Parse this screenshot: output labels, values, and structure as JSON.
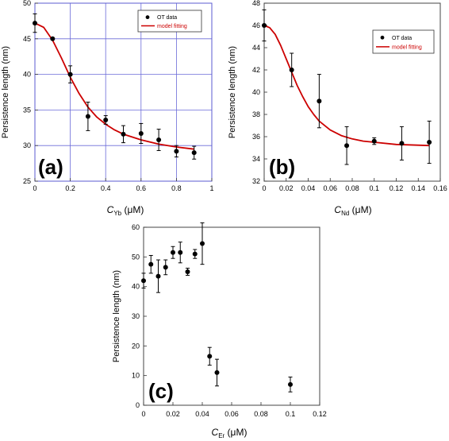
{
  "chart_data": [
    {
      "type": "scatter",
      "panel_label": "(a)",
      "xlabel_symbol": "C",
      "xlabel_sub": "Yb",
      "xlabel_unit": " (μM)",
      "ylabel": "Persistence length (nm)",
      "xlim": [
        0,
        1
      ],
      "ylim": [
        25,
        50
      ],
      "xticks": [
        "0",
        "0.2",
        "0.4",
        "0.6",
        "0.8",
        "1"
      ],
      "yticks": [
        "25",
        "30",
        "35",
        "40",
        "45",
        "50"
      ],
      "grid": true,
      "legend_position": "top-right",
      "series": [
        {
          "name": "OT data",
          "kind": "points",
          "color": "#000000",
          "points": [
            {
              "x": 0.0,
              "y": 47.2,
              "err": 1.3
            },
            {
              "x": 0.1,
              "y": 45.0,
              "err": 0
            },
            {
              "x": 0.2,
              "y": 40.0,
              "err": 1.2
            },
            {
              "x": 0.3,
              "y": 34.1,
              "err": 2.0
            },
            {
              "x": 0.4,
              "y": 33.6,
              "err": 0.6
            },
            {
              "x": 0.5,
              "y": 31.6,
              "err": 1.2
            },
            {
              "x": 0.6,
              "y": 31.7,
              "err": 1.4
            },
            {
              "x": 0.7,
              "y": 30.8,
              "err": 1.5
            },
            {
              "x": 0.8,
              "y": 29.2,
              "err": 0.8
            },
            {
              "x": 0.9,
              "y": 29.0,
              "err": 0.9
            }
          ]
        },
        {
          "name": "model fitting",
          "kind": "line",
          "color": "#cc0000",
          "points": [
            {
              "x": 0.0,
              "y": 47.2
            },
            {
              "x": 0.05,
              "y": 46.6
            },
            {
              "x": 0.1,
              "y": 44.8
            },
            {
              "x": 0.15,
              "y": 42.3
            },
            {
              "x": 0.2,
              "y": 39.6
            },
            {
              "x": 0.25,
              "y": 37.3
            },
            {
              "x": 0.3,
              "y": 35.4
            },
            {
              "x": 0.35,
              "y": 34.0
            },
            {
              "x": 0.4,
              "y": 33.0
            },
            {
              "x": 0.45,
              "y": 32.2
            },
            {
              "x": 0.5,
              "y": 31.6
            },
            {
              "x": 0.6,
              "y": 30.8
            },
            {
              "x": 0.7,
              "y": 30.2
            },
            {
              "x": 0.8,
              "y": 29.8
            },
            {
              "x": 0.9,
              "y": 29.5
            }
          ]
        }
      ]
    },
    {
      "type": "scatter",
      "panel_label": "(b)",
      "xlabel_symbol": "C",
      "xlabel_sub": "Nd",
      "xlabel_unit": " (μM)",
      "ylabel": "Persistence length (nm)",
      "xlim": [
        0,
        0.16
      ],
      "ylim": [
        32,
        48
      ],
      "xticks": [
        "0",
        "0.02",
        "0.04",
        "0.06",
        "0.08",
        "0.1",
        "0.12",
        "0.14",
        "0.16"
      ],
      "yticks": [
        "32",
        "34",
        "36",
        "38",
        "40",
        "42",
        "44",
        "46",
        "48"
      ],
      "grid": false,
      "legend_position": "top-right",
      "series": [
        {
          "name": "OT data",
          "kind": "points",
          "color": "#000000",
          "points": [
            {
              "x": 0.0,
              "y": 46.0,
              "err": 1.4
            },
            {
              "x": 0.025,
              "y": 42.0,
              "err": 1.5
            },
            {
              "x": 0.05,
              "y": 39.2,
              "err": 2.4
            },
            {
              "x": 0.075,
              "y": 35.2,
              "err": 1.7
            },
            {
              "x": 0.1,
              "y": 35.6,
              "err": 0.3
            },
            {
              "x": 0.125,
              "y": 35.4,
              "err": 1.5
            },
            {
              "x": 0.15,
              "y": 35.5,
              "err": 1.9
            }
          ]
        },
        {
          "name": "model fitting",
          "kind": "line",
          "color": "#cc0000",
          "points": [
            {
              "x": 0.0,
              "y": 46.0
            },
            {
              "x": 0.005,
              "y": 45.8
            },
            {
              "x": 0.01,
              "y": 45.2
            },
            {
              "x": 0.015,
              "y": 44.2
            },
            {
              "x": 0.02,
              "y": 43.0
            },
            {
              "x": 0.025,
              "y": 41.8
            },
            {
              "x": 0.03,
              "y": 40.6
            },
            {
              "x": 0.035,
              "y": 39.6
            },
            {
              "x": 0.04,
              "y": 38.7
            },
            {
              "x": 0.045,
              "y": 38.0
            },
            {
              "x": 0.05,
              "y": 37.4
            },
            {
              "x": 0.06,
              "y": 36.6
            },
            {
              "x": 0.07,
              "y": 36.1
            },
            {
              "x": 0.08,
              "y": 35.8
            },
            {
              "x": 0.09,
              "y": 35.6
            },
            {
              "x": 0.1,
              "y": 35.5
            },
            {
              "x": 0.12,
              "y": 35.3
            },
            {
              "x": 0.15,
              "y": 35.2
            }
          ]
        }
      ]
    },
    {
      "type": "scatter",
      "panel_label": "(c)",
      "xlabel_symbol": "C",
      "xlabel_sub": "Er",
      "xlabel_unit": " (μM)",
      "ylabel": "Persistence length (nm)",
      "xlim": [
        0,
        0.12
      ],
      "ylim": [
        0,
        60
      ],
      "xticks": [
        "0",
        "0.02",
        "0.04",
        "0.06",
        "0.08",
        "0.1",
        "0.12"
      ],
      "yticks": [
        "0",
        "10",
        "20",
        "30",
        "40",
        "50",
        "60"
      ],
      "grid": false,
      "series": [
        {
          "name": "",
          "kind": "points",
          "color": "#000000",
          "points": [
            {
              "x": 0.0,
              "y": 42.0,
              "err": 2.5
            },
            {
              "x": 0.005,
              "y": 47.5,
              "err": 3.0
            },
            {
              "x": 0.01,
              "y": 43.5,
              "err": 5.5
            },
            {
              "x": 0.015,
              "y": 46.5,
              "err": 2.5
            },
            {
              "x": 0.02,
              "y": 51.5,
              "err": 2.0
            },
            {
              "x": 0.025,
              "y": 51.5,
              "err": 3.5
            },
            {
              "x": 0.03,
              "y": 45.0,
              "err": 1.2
            },
            {
              "x": 0.035,
              "y": 51.0,
              "err": 1.5
            },
            {
              "x": 0.04,
              "y": 54.5,
              "err": 7.0
            },
            {
              "x": 0.045,
              "y": 16.5,
              "err": 3.0
            },
            {
              "x": 0.05,
              "y": 11.0,
              "err": 4.5
            },
            {
              "x": 0.1,
              "y": 7.0,
              "err": 2.5
            }
          ]
        }
      ]
    }
  ]
}
